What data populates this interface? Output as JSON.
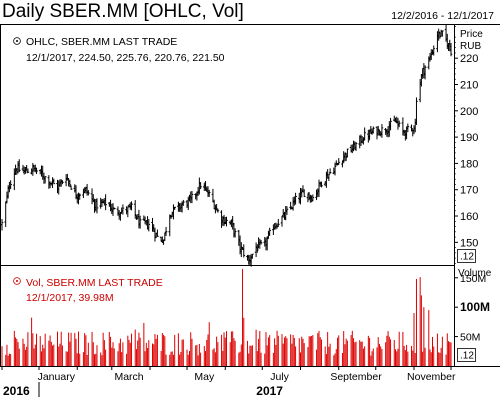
{
  "header": {
    "title": "Daily SBER.MM [OHLC, Vol]",
    "date_range": "12/2/2016 - 12/1/2017"
  },
  "price_panel": {
    "legend_series": "OHLC, SBER.MM LAST TRADE",
    "legend_values": "12/1/2017, 224.50, 225.76, 220.76, 221.50",
    "axis_title_1": "Price",
    "axis_title_2": "RUB",
    "badge": ".12"
  },
  "volume_panel": {
    "legend_series": "Vol, SBER.MM LAST TRADE",
    "legend_values": "12/1/2017, 39.98M",
    "axis_title": "Volume",
    "badge": ".12"
  },
  "colors": {
    "price_bars": "#000000",
    "volume_bars": "#dd0000",
    "volume_text": "#cc0000",
    "grid": "#b0b0b0"
  },
  "chart_data": [
    {
      "type": "ohlc",
      "title": "Daily SBER.MM",
      "ylabel": "Price RUB",
      "ylim": [
        141,
        233
      ],
      "y_ticks": [
        150,
        160,
        170,
        180,
        190,
        200,
        210,
        220
      ],
      "x_labels": [
        "January",
        "March",
        "May",
        "July",
        "September",
        "November"
      ],
      "year_labels": [
        "2016",
        "2017"
      ],
      "grid": false,
      "anchors": [
        [
          "2016-12-02",
          157
        ],
        [
          "2016-12-08",
          172
        ],
        [
          "2016-12-13",
          178
        ],
        [
          "2016-12-20",
          177
        ],
        [
          "2016-12-27",
          178
        ],
        [
          "2017-01-03",
          176
        ],
        [
          "2017-01-10",
          173
        ],
        [
          "2017-01-16",
          171
        ],
        [
          "2017-01-23",
          175
        ],
        [
          "2017-01-31",
          168
        ],
        [
          "2017-02-08",
          170
        ],
        [
          "2017-02-16",
          164
        ],
        [
          "2017-02-24",
          165
        ],
        [
          "2017-03-03",
          162
        ],
        [
          "2017-03-10",
          162
        ],
        [
          "2017-03-17",
          163
        ],
        [
          "2017-03-24",
          157
        ],
        [
          "2017-04-01",
          157
        ],
        [
          "2017-04-07",
          152
        ],
        [
          "2017-04-12",
          151
        ],
        [
          "2017-04-17",
          161
        ],
        [
          "2017-04-26",
          164
        ],
        [
          "2017-05-04",
          166
        ],
        [
          "2017-05-12",
          172
        ],
        [
          "2017-05-19",
          168
        ],
        [
          "2017-05-29",
          159
        ],
        [
          "2017-06-06",
          157
        ],
        [
          "2017-06-13",
          148
        ],
        [
          "2017-06-16",
          146
        ],
        [
          "2017-06-20",
          143
        ],
        [
          "2017-06-26",
          148
        ],
        [
          "2017-07-03",
          149
        ],
        [
          "2017-07-10",
          156
        ],
        [
          "2017-07-19",
          160
        ],
        [
          "2017-07-28",
          166
        ],
        [
          "2017-08-04",
          169
        ],
        [
          "2017-08-11",
          167
        ],
        [
          "2017-08-18",
          173
        ],
        [
          "2017-08-28",
          178
        ],
        [
          "2017-09-05",
          183
        ],
        [
          "2017-09-13",
          186
        ],
        [
          "2017-09-21",
          190
        ],
        [
          "2017-09-29",
          192
        ],
        [
          "2017-10-09",
          193
        ],
        [
          "2017-10-17",
          196
        ],
        [
          "2017-10-23",
          192
        ],
        [
          "2017-10-30",
          193
        ],
        [
          "2017-11-02",
          195
        ],
        [
          "2017-11-03",
          205
        ],
        [
          "2017-11-08",
          215
        ],
        [
          "2017-11-13",
          219
        ],
        [
          "2017-11-17",
          224
        ],
        [
          "2017-11-20",
          229
        ],
        [
          "2017-11-24",
          229
        ],
        [
          "2017-11-28",
          226
        ],
        [
          "2017-12-01",
          222
        ]
      ],
      "last_bar": {
        "date": "12/1/2017",
        "open": 224.5,
        "high": 225.76,
        "low": 220.76,
        "close": 221.5
      }
    },
    {
      "type": "bar",
      "title": "Vol",
      "ylabel": "Volume",
      "ylim": [
        0,
        170
      ],
      "y_ticks": [
        50,
        100,
        150
      ],
      "y_tick_labels": [
        "50M",
        "100M",
        "150M"
      ],
      "units": "M",
      "base_volume": 50,
      "spikes": [
        [
          "2017-06-15",
          165
        ],
        [
          "2017-06-16",
          82
        ],
        [
          "2017-11-01",
          90
        ],
        [
          "2017-11-03",
          148
        ],
        [
          "2017-11-06",
          151
        ],
        [
          "2017-11-07",
          120
        ],
        [
          "2017-11-09",
          100
        ],
        [
          "2017-11-13",
          95
        ]
      ],
      "last_bar": {
        "date": "12/1/2017",
        "value": 39.98
      }
    }
  ]
}
